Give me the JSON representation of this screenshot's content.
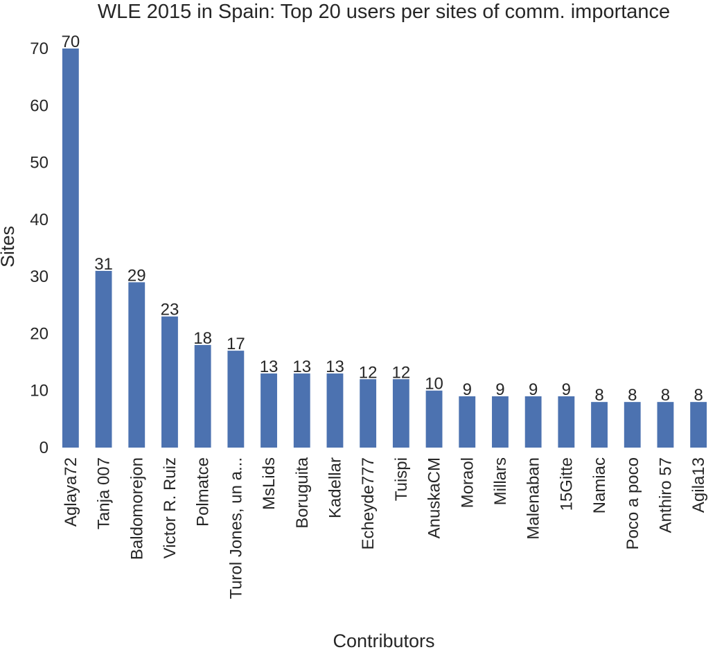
{
  "chart_data": {
    "type": "bar",
    "title": "WLE 2015 in Spain: Top 20 users per sites of comm. importance",
    "xlabel": "Contributors",
    "ylabel": "Sites",
    "ylim": [
      0,
      70
    ],
    "yticks": [
      0,
      10,
      20,
      30,
      40,
      50,
      60,
      70
    ],
    "grid": false,
    "bar_color": "#4c72b0",
    "categories": [
      "Aglaya72",
      "Tanja 007",
      "Baldomorejon",
      "Victor R. Ruiz",
      "Polmatce",
      "Turol Jones, un a...",
      "MsLids",
      "Boruguita",
      "Kadellar",
      "Echeyde777",
      "Tuispi",
      "AnuskaCM",
      "Moraol",
      "Millars",
      "Malenaban",
      "15Gitte",
      "Namiac",
      "Poco a poco",
      "Anthiro 57",
      "Agila13"
    ],
    "values": [
      70,
      31,
      29,
      23,
      18,
      17,
      13,
      13,
      13,
      12,
      12,
      10,
      9,
      9,
      9,
      9,
      8,
      8,
      8,
      8
    ]
  }
}
